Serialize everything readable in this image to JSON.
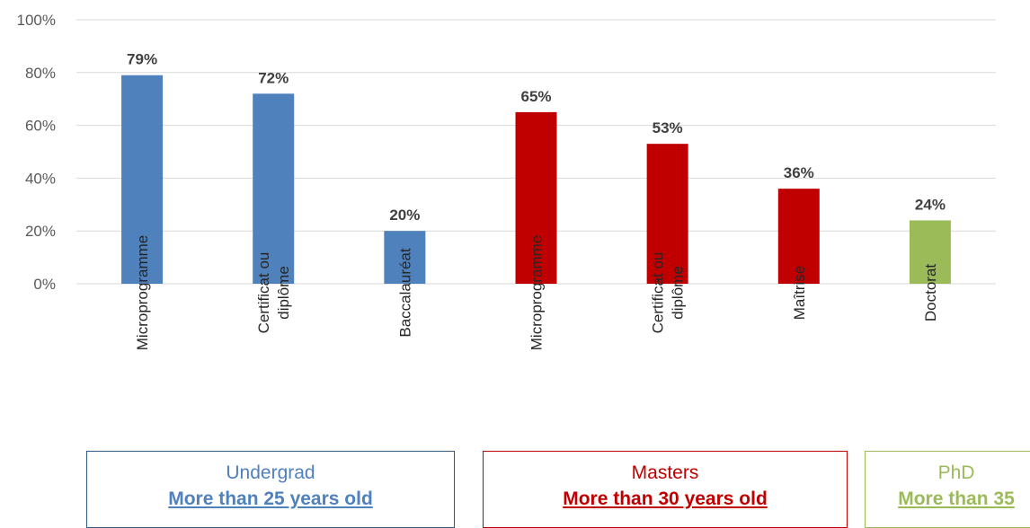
{
  "chart_data": {
    "type": "bar",
    "categories": [
      [
        "Microprogramme"
      ],
      [
        "Certificat ou",
        "diplôme"
      ],
      [
        "Baccalauréat"
      ],
      [
        "Microprogramme"
      ],
      [
        "Certificat ou",
        "diplôme"
      ],
      [
        "Maîtrise"
      ],
      [
        "Doctorat"
      ]
    ],
    "values": [
      79,
      72,
      20,
      65,
      53,
      36,
      24
    ],
    "value_labels": [
      "79%",
      "72%",
      "20%",
      "65%",
      "53%",
      "36%",
      "24%"
    ],
    "bar_colors": [
      "#4f81bd",
      "#4f81bd",
      "#4f81bd",
      "#c00000",
      "#c00000",
      "#c00000",
      "#9bbb59"
    ],
    "ylim": [
      0,
      100
    ],
    "yticks": [
      0,
      20,
      40,
      60,
      80,
      100
    ],
    "ytick_labels": [
      "0%",
      "20%",
      "40%",
      "60%",
      "80%",
      "100%"
    ],
    "grid": true,
    "title": "",
    "xlabel": "",
    "ylabel": ""
  },
  "groups": {
    "undergrad": {
      "title": "Undergrad",
      "subtitle": "More than 25 years old",
      "color": "#4f81bd",
      "sub_color": "#4f81bd"
    },
    "masters": {
      "title": "Masters",
      "subtitle": "More than 30 years old",
      "color": "#c00000",
      "sub_color": "#c00000"
    },
    "phd": {
      "title": "PhD",
      "subtitle": "More than 35",
      "color": "#9bbb59",
      "sub_color": "#9bbb59"
    }
  },
  "colors": {
    "grid": "#d9d9d9",
    "axis_text": "#595959",
    "value_label": "#404040",
    "category_text": "#262626"
  }
}
